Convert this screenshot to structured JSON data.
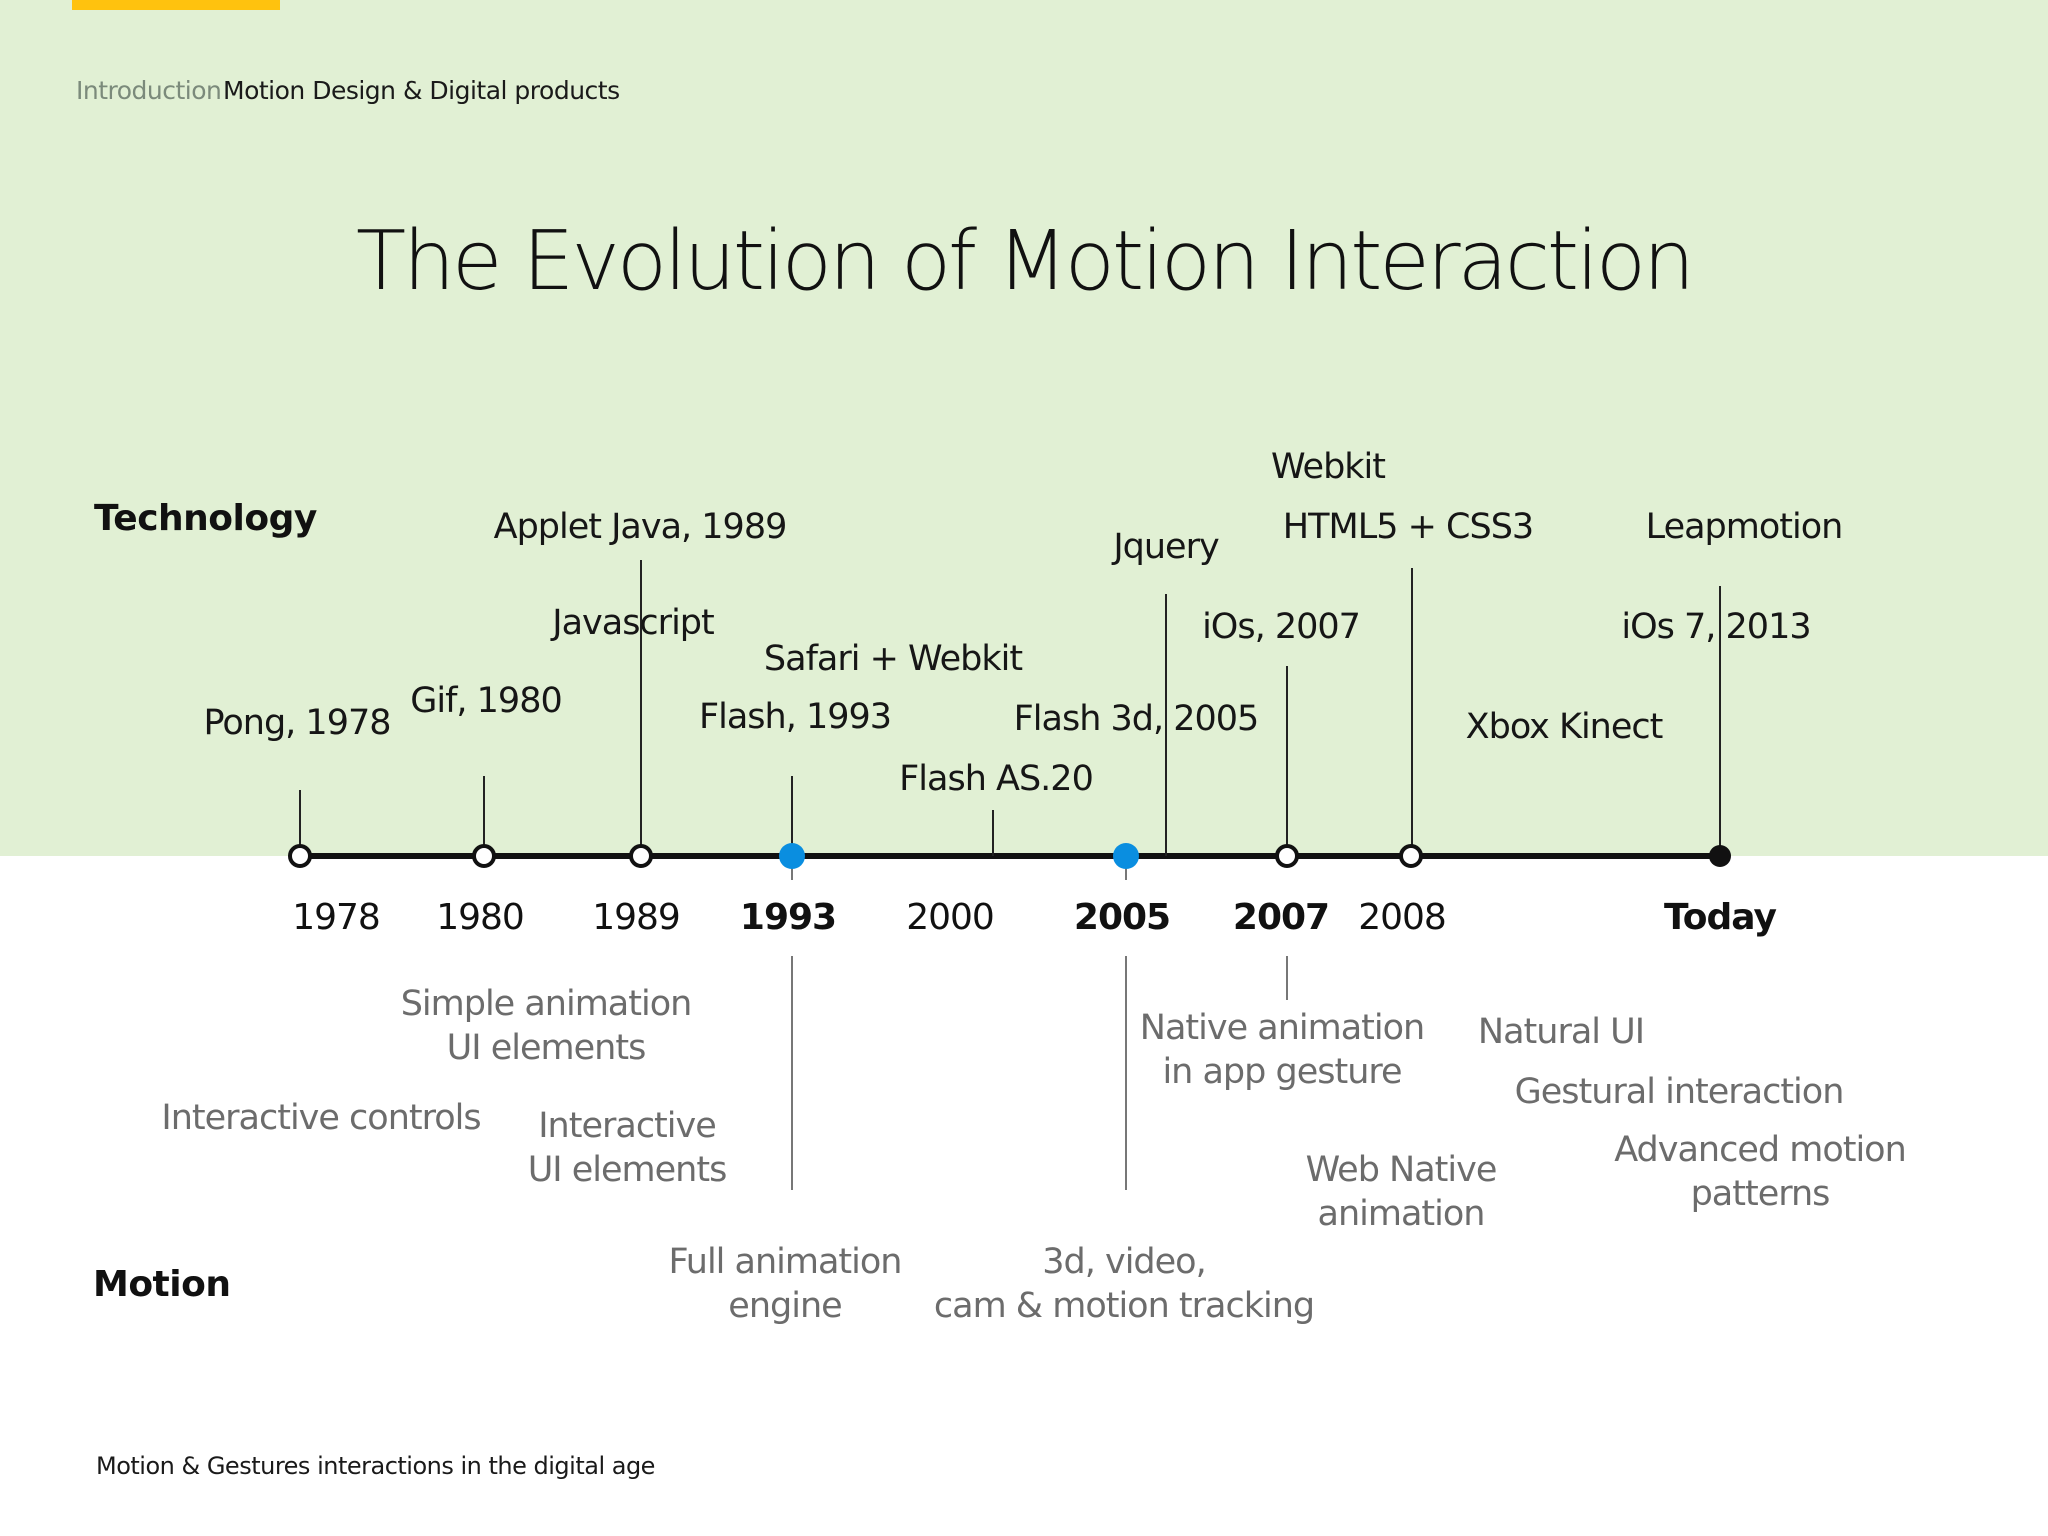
{
  "breadcrumb": {
    "section": "Introduction",
    "page": "Motion Design & Digital products"
  },
  "title": "The Evolution of Motion Interaction",
  "rows": {
    "top": "Technology",
    "bottom": "Motion"
  },
  "footer": "Motion & Gestures interactions in the digital age",
  "colors": {
    "background_top": "#e1f0d4",
    "accent_bar": "#ffc20e",
    "highlight_dot": "#0a8ee0",
    "axis": "#111111",
    "motion_text": "#6c6c6c"
  },
  "timeline": {
    "nodes": [
      {
        "year": "1978",
        "style": "open"
      },
      {
        "year": "1980",
        "style": "open"
      },
      {
        "year": "1989",
        "style": "open"
      },
      {
        "year": "1993",
        "style": "blue"
      },
      {
        "year": "2000",
        "style": "none"
      },
      {
        "year": "2005",
        "style": "blue"
      },
      {
        "year": "2007",
        "style": "open"
      },
      {
        "year": "2008",
        "style": "open"
      },
      {
        "year": "Today",
        "style": "filled"
      }
    ],
    "year_labels": [
      {
        "text": "1978",
        "bold": false
      },
      {
        "text": "1980",
        "bold": false
      },
      {
        "text": "1989",
        "bold": false
      },
      {
        "text": "1993",
        "bold": true
      },
      {
        "text": "2000",
        "bold": false
      },
      {
        "text": "2005",
        "bold": true
      },
      {
        "text": "2007",
        "bold": true
      },
      {
        "text": "2008",
        "bold": false
      },
      {
        "text": "Today",
        "bold": true
      }
    ],
    "technology": [
      "Pong, 1978",
      "Gif, 1980",
      "Applet Java, 1989",
      "Javascript",
      "Flash, 1993",
      "Safari + Webkit",
      "Flash AS.20",
      "Flash 3d, 2005",
      "Jquery",
      "iOs, 2007",
      "Webkit",
      "HTML5 + CSS3",
      "Xbox Kinect",
      "Leapmotion",
      "iOs 7, 2013"
    ],
    "motion": [
      [
        "Simple animation",
        "UI elements"
      ],
      [
        "Interactive controls"
      ],
      [
        "Interactive",
        "UI elements"
      ],
      [
        "Full animation",
        "engine"
      ],
      [
        "Native animation",
        "in app gesture"
      ],
      [
        "3d, video,",
        "cam & motion tracking"
      ],
      [
        "Web Native",
        "animation"
      ],
      [
        "Natural UI"
      ],
      [
        "Gestural interaction"
      ],
      [
        "Advanced motion",
        "patterns"
      ]
    ]
  }
}
